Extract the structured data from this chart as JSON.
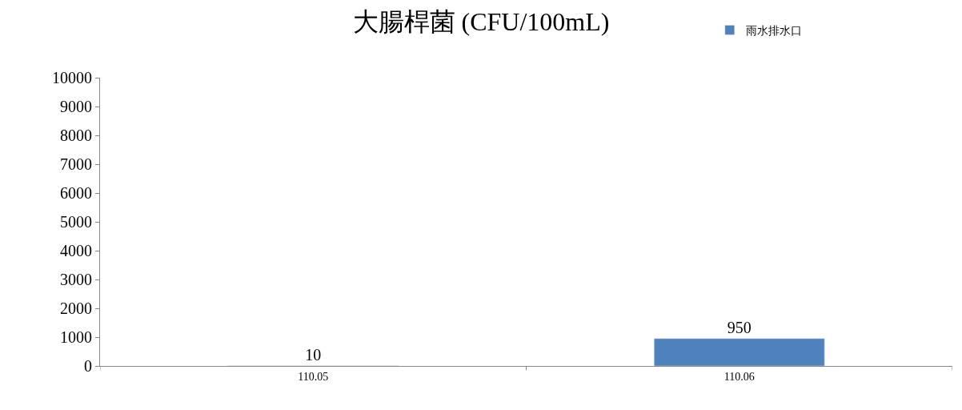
{
  "chart_data": {
    "type": "bar",
    "title": "大腸桿菌 (CFU/100mL)",
    "categories": [
      "110.05",
      "110.06"
    ],
    "series": [
      {
        "name": "雨水排水口",
        "color": "#4f81bd",
        "values": [
          10,
          950
        ]
      }
    ],
    "ylim": [
      0,
      10000
    ],
    "yticks": [
      0,
      1000,
      2000,
      3000,
      4000,
      5000,
      6000,
      7000,
      8000,
      9000,
      10000
    ],
    "data_labels": true,
    "legend": "top right"
  }
}
